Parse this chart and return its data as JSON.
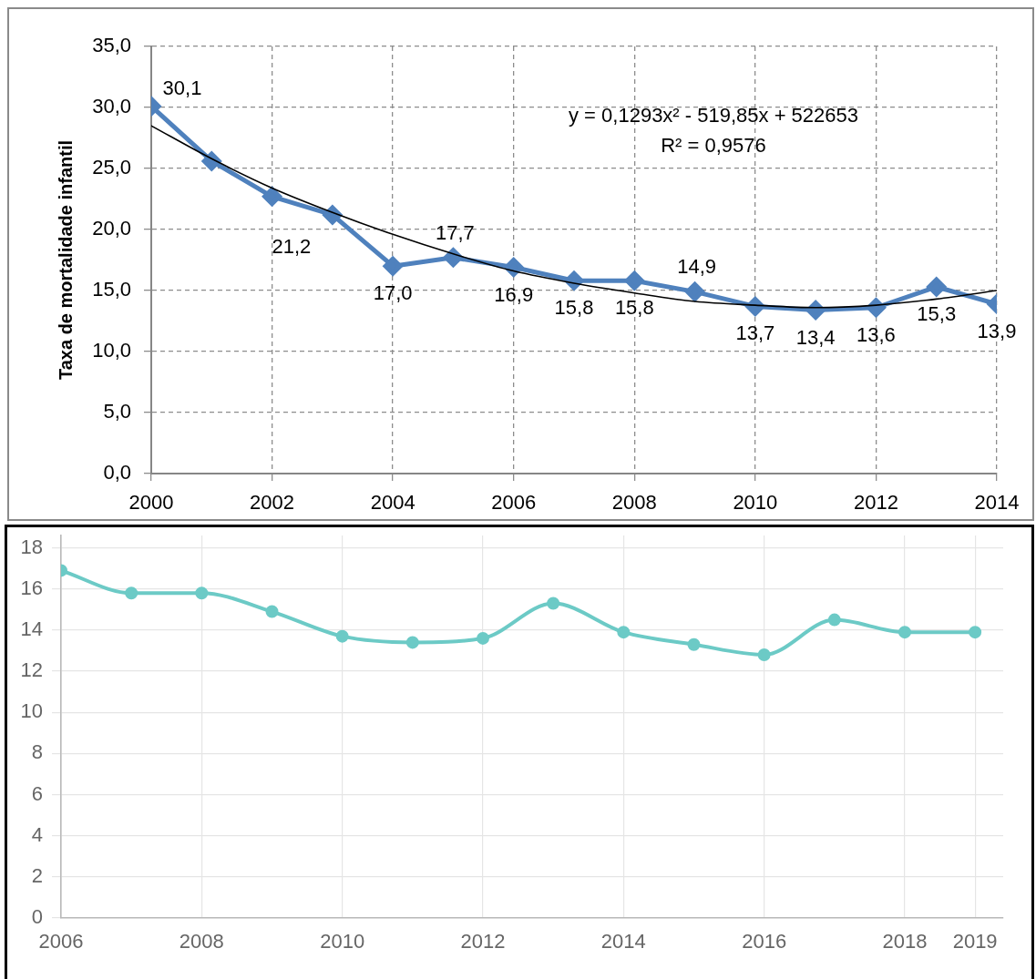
{
  "chart_data": [
    {
      "type": "line",
      "ylabel": "Taxa de mortalidade infantil",
      "x": [
        2000,
        2001,
        2002,
        2003,
        2004,
        2005,
        2006,
        2007,
        2008,
        2009,
        2010,
        2011,
        2012,
        2013,
        2014
      ],
      "series": [
        {
          "color": "#4f81bd",
          "marker": "diamond",
          "values": [
            30.1,
            25.6,
            22.7,
            21.2,
            17.0,
            17.7,
            16.9,
            15.8,
            15.8,
            14.9,
            13.7,
            13.4,
            13.6,
            15.3,
            13.9
          ],
          "value_labels": [
            "30,1",
            null,
            null,
            "21,2",
            "17,0",
            "17,7",
            "16,9",
            "15,8",
            "15,8",
            "14,9",
            "13,7",
            "13,4",
            "13,6",
            "15,3",
            "13,9"
          ]
        },
        {
          "type": "line",
          "color": "#000000",
          "marker": "none",
          "x": [
            2000,
            2001,
            2002,
            2003,
            2004,
            2005,
            2006,
            2007,
            2008,
            2009,
            2010,
            2011,
            2012,
            2013,
            2014
          ],
          "values": [
            28.5,
            25.8,
            23.4,
            21.4,
            19.6,
            18.0,
            16.6,
            15.6,
            14.8,
            14.1,
            13.8,
            13.6,
            13.8,
            14.3,
            15.0
          ]
        }
      ],
      "xlim": [
        2000,
        2014
      ],
      "ylim": [
        0,
        35
      ],
      "xticks": [
        2000,
        2002,
        2004,
        2006,
        2008,
        2010,
        2012,
        2014
      ],
      "yticks": [
        {
          "value": 0,
          "label": "0,0"
        },
        {
          "value": 5,
          "label": "5,0"
        },
        {
          "value": 10,
          "label": "10,0"
        },
        {
          "value": 15,
          "label": "15,0"
        },
        {
          "value": 20,
          "label": "20,0"
        },
        {
          "value": 25,
          "label": "25,0"
        },
        {
          "value": 30,
          "label": "30,0"
        },
        {
          "value": 35,
          "label": "35,0"
        }
      ],
      "grid": true,
      "annotations": [
        "y = 0,1293x² - 519,85x + 522653",
        "R² = 0,9576"
      ]
    },
    {
      "type": "line",
      "x": [
        2006,
        2007,
        2008,
        2009,
        2010,
        2011,
        2012,
        2013,
        2014,
        2015,
        2016,
        2017,
        2018,
        2019
      ],
      "values": [
        16.9,
        15.8,
        15.8,
        14.9,
        13.7,
        13.4,
        13.6,
        15.3,
        13.9,
        13.3,
        12.8,
        14.5,
        13.9,
        13.9
      ],
      "color": "#6ccac6",
      "marker": "circle",
      "xlim": [
        2006,
        2019.4
      ],
      "ylim": [
        0,
        18.6
      ],
      "xticks": [
        2006,
        2008,
        2010,
        2012,
        2014,
        2016,
        2018,
        2019
      ],
      "yticks": [
        0,
        2,
        4,
        6,
        8,
        10,
        12,
        14,
        16,
        18
      ],
      "grid": true
    }
  ]
}
